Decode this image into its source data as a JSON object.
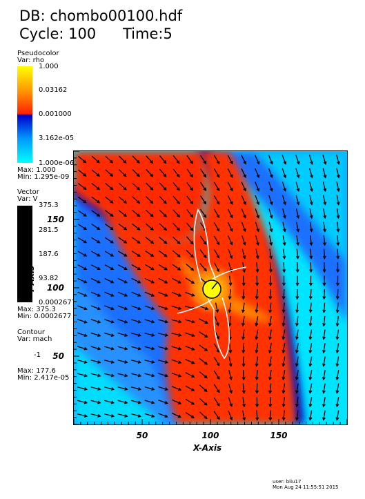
{
  "header": {
    "db_label": "DB: chombo00100.hdf",
    "cycle_label": "Cycle: 100",
    "time_label": "Time:5"
  },
  "legend_pseudocolor": {
    "type_label": "Pseudocolor",
    "var_label": "Var: rho",
    "ticks": [
      "1.000",
      "0.03162",
      "0.001000",
      "3.162e-05",
      "1.000e-06"
    ],
    "max_label": "Max:  1.000",
    "min_label": "Min:  1.295e-09",
    "colors": [
      "#ffff00",
      "#ff9900",
      "#ff2200",
      "#0000cc",
      "#0099ff",
      "#00ffff"
    ]
  },
  "legend_vector": {
    "type_label": "Vector",
    "var_label": "Var: V",
    "ticks": [
      "375.3",
      "281.5",
      "187.6",
      "93.82",
      "0.0002677"
    ],
    "max_label": "Max:  375.3",
    "min_label": "Min:  0.0002677",
    "color": "#000000"
  },
  "legend_contour": {
    "type_label": "Contour",
    "var_label": "Var: mach",
    "level_label": "-1",
    "max_label": "Max:  177.6",
    "min_label": "Min:  2.417e-05",
    "color": "#ffffff"
  },
  "plot": {
    "x_axis_label": "X-Axis",
    "y_axis_label": "Y-Axis",
    "x_ticks": [
      "50",
      "100",
      "150"
    ],
    "y_ticks": [
      "150",
      "100",
      "50"
    ],
    "x_tick_values": [
      50,
      100,
      150
    ],
    "y_tick_values": [
      150,
      100,
      50
    ],
    "xlim": [
      0,
      200
    ],
    "ylim": [
      0,
      200
    ],
    "sink_color": "#ffff00"
  },
  "footer": {
    "user_label": "user: bliu17",
    "date_label": "Mon Aug 24 11:55:51 2015"
  }
}
